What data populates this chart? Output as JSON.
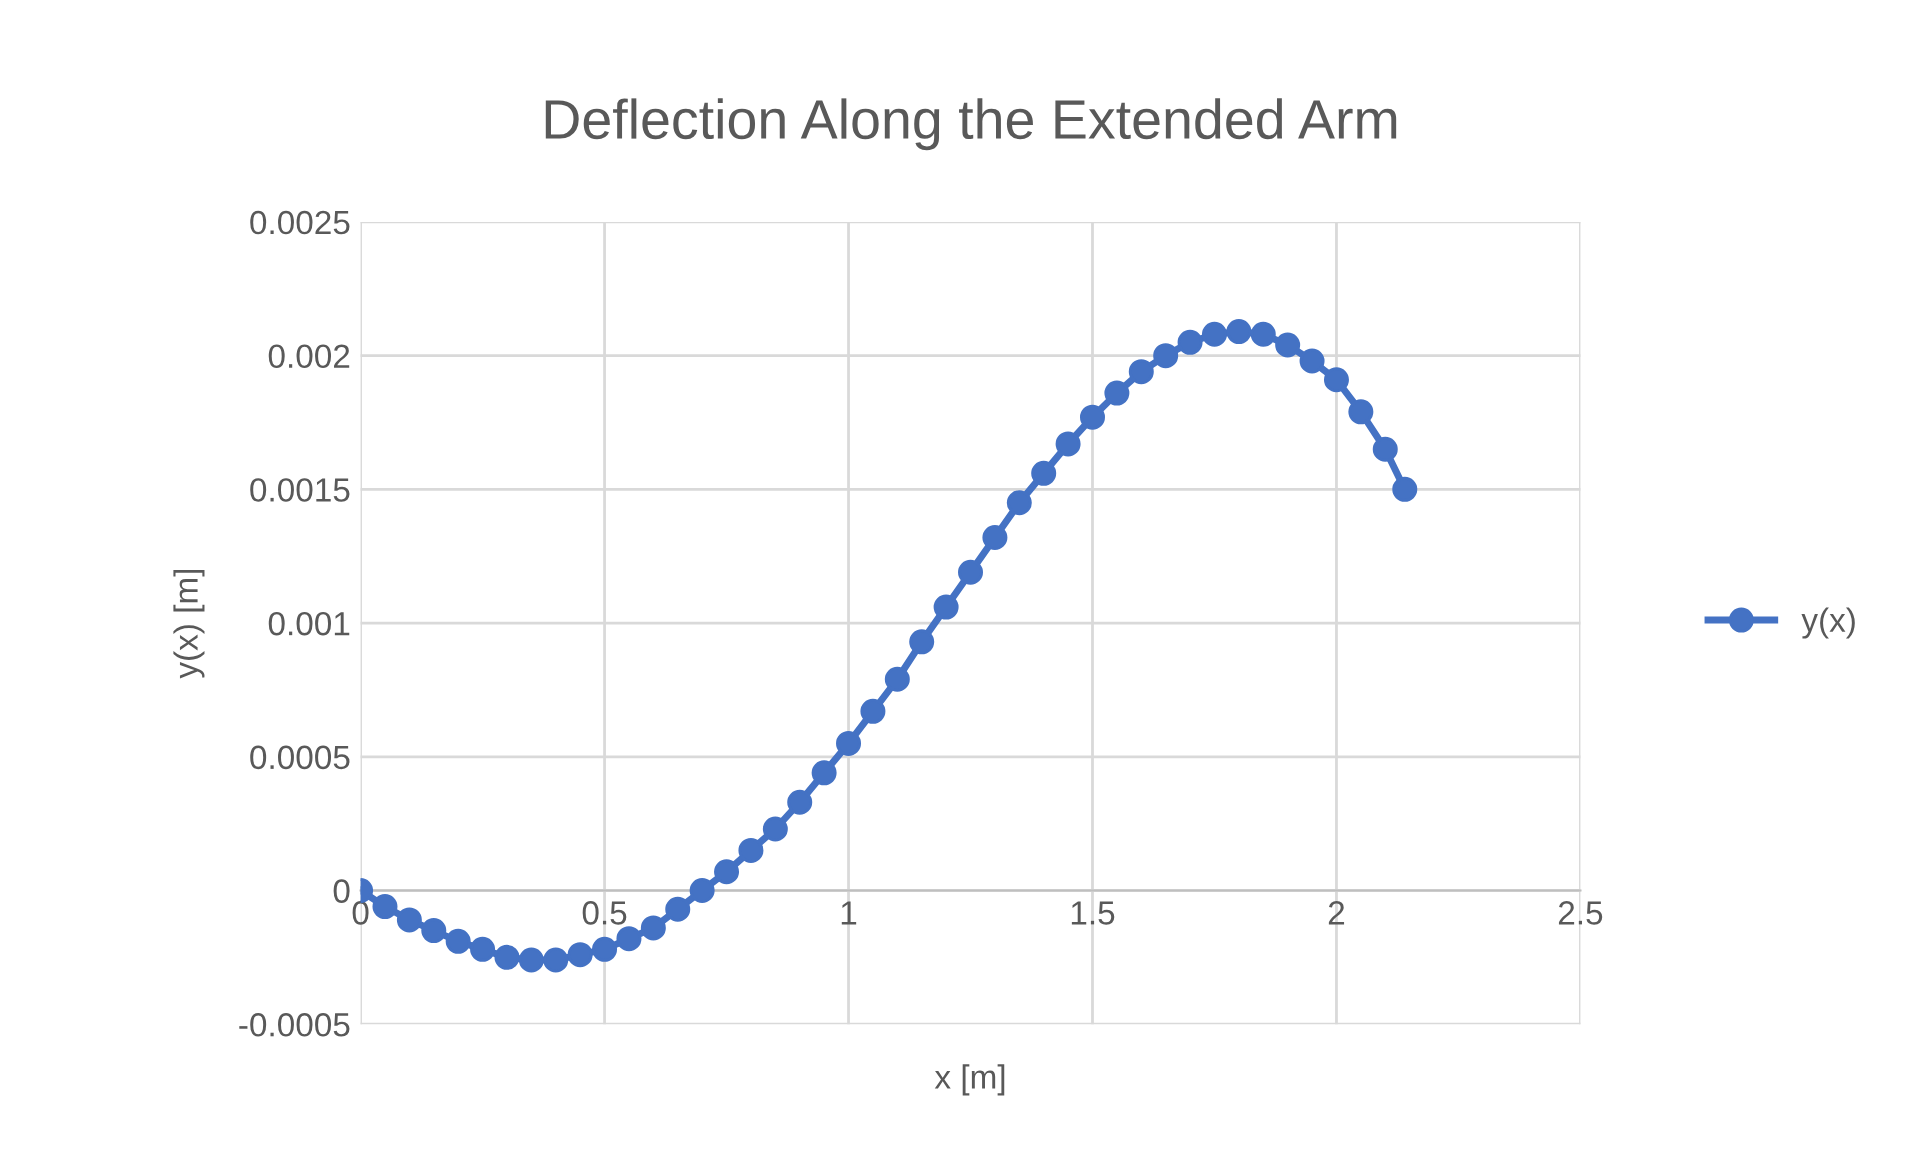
{
  "chart_data": {
    "type": "line",
    "title": "Deflection Along the Extended Arm",
    "xlabel": "x [m]",
    "ylabel": "y(x) [m]",
    "x": [
      0,
      0.05,
      0.1,
      0.15,
      0.2,
      0.25,
      0.3,
      0.35,
      0.4,
      0.45,
      0.5,
      0.55,
      0.6,
      0.65,
      0.7,
      0.75,
      0.8,
      0.85,
      0.9,
      0.95,
      1.0,
      1.05,
      1.1,
      1.15,
      1.2,
      1.25,
      1.3,
      1.35,
      1.4,
      1.45,
      1.5,
      1.55,
      1.6,
      1.65,
      1.7,
      1.75,
      1.8,
      1.85,
      1.9,
      1.95,
      2.0,
      2.05,
      2.1,
      2.14
    ],
    "series": [
      {
        "name": "y(x)",
        "color": "#4472c4",
        "values": [
          0,
          -6e-05,
          -0.00011,
          -0.00015,
          -0.00019,
          -0.00022,
          -0.00025,
          -0.00026,
          -0.00026,
          -0.00024,
          -0.00022,
          -0.00018,
          -0.00014,
          -7e-05,
          0,
          7e-05,
          0.00015,
          0.00023,
          0.00033,
          0.00044,
          0.00055,
          0.00067,
          0.00079,
          0.00093,
          0.00106,
          0.00119,
          0.00132,
          0.00145,
          0.00156,
          0.00167,
          0.00177,
          0.00186,
          0.00194,
          0.002,
          0.00205,
          0.00208,
          0.00209,
          0.00208,
          0.00204,
          0.00198,
          0.00191,
          0.00179,
          0.00165,
          0.0015
        ]
      }
    ],
    "xlim": [
      0,
      2.5
    ],
    "xticks": [
      0,
      0.5,
      1,
      1.5,
      2,
      2.5
    ],
    "ylim": [
      -0.0005,
      0.0025
    ],
    "yticks": [
      -0.0005,
      0,
      0.0005,
      0.001,
      0.0015,
      0.002,
      0.0025
    ],
    "grid": true,
    "legend": "right",
    "marker": "circle",
    "line_style": "solid"
  }
}
